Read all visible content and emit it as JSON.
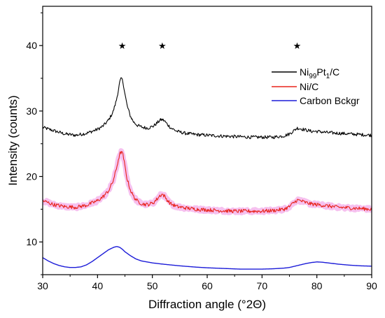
{
  "chart_data": {
    "type": "line",
    "xlabel": "Diffraction angle (°2Θ)",
    "ylabel": "Intensity (counts)",
    "xlim": [
      30,
      90
    ],
    "ylim": [
      5,
      46
    ],
    "x_ticks": [
      30,
      40,
      50,
      60,
      70,
      80,
      90
    ],
    "y_ticks": [
      10,
      20,
      30,
      40
    ],
    "grid": false,
    "legend_position": "top-right",
    "markers": [
      {
        "x": 44.5,
        "y": 40,
        "symbol": "★"
      },
      {
        "x": 51.8,
        "y": 40,
        "symbol": "★"
      },
      {
        "x": 76.4,
        "y": 40,
        "symbol": "★"
      }
    ],
    "series": [
      {
        "name": "Ni99Pt1/C",
        "legend_parts": {
          "base1": "Ni",
          "sub1": "99",
          "base2": "Pt",
          "sub2": "1",
          "tail": "/C"
        },
        "color": "#000000",
        "noise": 0.25,
        "x": [
          30,
          32,
          34,
          36,
          38,
          40,
          41,
          42,
          42.8,
          43.4,
          43.8,
          44.1,
          44.4,
          44.7,
          45.0,
          45.4,
          46.0,
          46.6,
          47.3,
          48.2,
          49.2,
          50.2,
          50.9,
          51.4,
          51.8,
          52.2,
          52.7,
          53.4,
          54.5,
          56,
          58,
          60,
          62,
          65,
          68,
          70,
          72,
          74,
          75,
          75.8,
          76.4,
          77.0,
          78,
          79,
          80,
          82,
          84,
          86,
          88,
          90
        ],
        "y": [
          27.5,
          27.0,
          26.5,
          26.3,
          26.6,
          27.2,
          27.7,
          28.6,
          29.8,
          31.5,
          33.2,
          34.6,
          35.0,
          34.2,
          32.6,
          30.8,
          29.2,
          28.3,
          27.8,
          27.5,
          27.4,
          27.7,
          28.2,
          28.6,
          28.7,
          28.5,
          28.0,
          27.4,
          26.9,
          26.6,
          26.4,
          26.3,
          26.2,
          26.1,
          26.0,
          26.0,
          26.0,
          26.2,
          26.5,
          27.0,
          27.4,
          27.3,
          27.1,
          26.9,
          26.9,
          26.7,
          26.6,
          26.5,
          26.4,
          26.3
        ]
      },
      {
        "name": "Ni/C",
        "color": "#e8231b",
        "halo_color": "#ee8ee2",
        "noise": 0.28,
        "x": [
          30,
          32,
          34,
          36,
          38,
          40,
          41,
          42,
          42.8,
          43.4,
          43.8,
          44.1,
          44.4,
          44.7,
          45.0,
          45.4,
          46.0,
          46.6,
          47.3,
          48.2,
          49.2,
          50.2,
          50.9,
          51.4,
          51.8,
          52.2,
          52.7,
          53.4,
          54.5,
          56,
          58,
          60,
          62,
          65,
          68,
          70,
          72,
          74,
          75,
          75.8,
          76.4,
          77.0,
          78,
          79,
          80,
          82,
          84,
          86,
          88,
          90
        ],
        "y": [
          16.3,
          15.7,
          15.4,
          15.3,
          15.6,
          16.3,
          16.9,
          17.8,
          19.2,
          21.0,
          22.6,
          23.5,
          23.8,
          23.1,
          21.5,
          19.6,
          17.9,
          16.9,
          16.2,
          15.8,
          15.7,
          16.0,
          16.6,
          17.1,
          17.3,
          17.0,
          16.4,
          15.8,
          15.4,
          15.2,
          15.0,
          14.9,
          14.8,
          14.7,
          14.7,
          14.7,
          14.8,
          15.0,
          15.4,
          16.0,
          16.4,
          16.3,
          16.0,
          15.8,
          15.7,
          15.5,
          15.3,
          15.2,
          15.1,
          15.0
        ]
      },
      {
        "name": "Carbon Bckgr",
        "color": "#1b1bd8",
        "noise": 0.02,
        "x": [
          30,
          31,
          32,
          33,
          34,
          35,
          36,
          37,
          38,
          39,
          40,
          41,
          42,
          43,
          43.5,
          44,
          44.5,
          45,
          46,
          47,
          48,
          50,
          52,
          55,
          58,
          60,
          63,
          66,
          68,
          70,
          72,
          73,
          74,
          75,
          76,
          77,
          78,
          79,
          80,
          81,
          82,
          84,
          86,
          88,
          90
        ],
        "y": [
          7.6,
          7.1,
          6.7,
          6.4,
          6.2,
          6.1,
          6.1,
          6.2,
          6.5,
          7.0,
          7.6,
          8.2,
          8.8,
          9.2,
          9.3,
          9.2,
          8.9,
          8.5,
          7.9,
          7.4,
          7.1,
          6.8,
          6.6,
          6.35,
          6.15,
          6.05,
          5.95,
          5.85,
          5.85,
          5.85,
          5.9,
          5.95,
          6.0,
          6.1,
          6.3,
          6.5,
          6.7,
          6.85,
          6.95,
          6.9,
          6.8,
          6.6,
          6.45,
          6.35,
          6.3
        ]
      }
    ]
  }
}
